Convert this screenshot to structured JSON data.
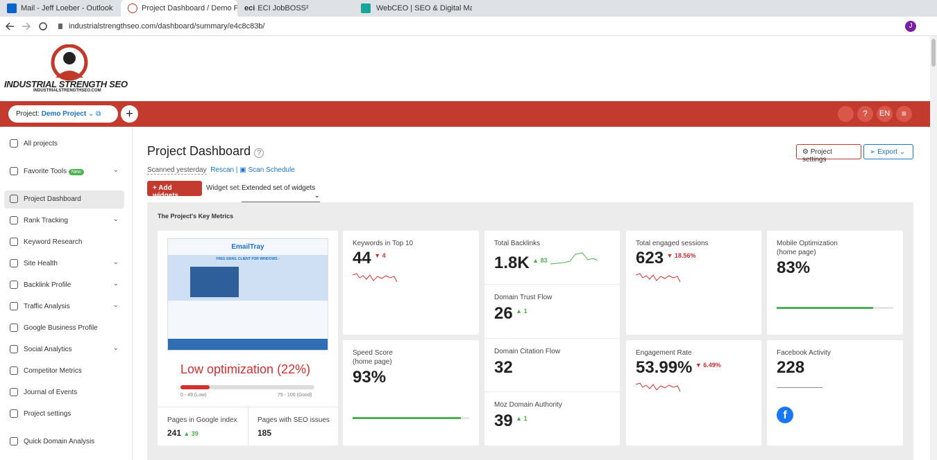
{
  "browser": {
    "tabs": [
      {
        "title": "Mail - Jeff Loeber - Outlook"
      },
      {
        "title": "Project Dashboard / Demo Proje"
      },
      {
        "icon_text": "eci",
        "title": "ECI JobBOSS²"
      },
      {
        "title": "WebCEO | SEO & Digital Marketi"
      }
    ],
    "url": "industrialstrengthseo.com/dashboard/summary/e4c8c83b/",
    "profile": "J"
  },
  "logo": {
    "title": "INDUSTRIAL STRENGTH SEO",
    "subtitle": "INDUSTRIALSTRENGTHSEO.COM"
  },
  "topbar": {
    "project_label": "Project:",
    "project_name": "Demo Project",
    "language": "EN"
  },
  "sidebar": {
    "items": [
      {
        "label": "All projects"
      },
      {
        "label": "Favorite Tools",
        "badge": "New"
      },
      {
        "label": "Project Dashboard"
      },
      {
        "label": "Rank Tracking"
      },
      {
        "label": "Keyword Research"
      },
      {
        "label": "Site Health"
      },
      {
        "label": "Backlink Profile"
      },
      {
        "label": "Traffic Analysis"
      },
      {
        "label": "Google Business Profile"
      },
      {
        "label": "Social Analytics"
      },
      {
        "label": "Competitor Metrics"
      },
      {
        "label": "Journal of Events"
      },
      {
        "label": "Project settings"
      },
      {
        "label": "Quick Domain Analysis"
      }
    ]
  },
  "header": {
    "title": "Project Dashboard",
    "scanned": "Scanned yesterday",
    "rescan": "Rescan",
    "separator": "|",
    "scan_schedule": "Scan Schedule",
    "project_settings": "Project settings",
    "export": "Export",
    "add_widgets": "Add widgets",
    "widget_set_label": "Widget set:",
    "widget_set": "Extended set of widgets"
  },
  "panel": {
    "title": "The Project's Key Metrics",
    "site": {
      "preview_brand": "EmailTray",
      "preview_headline": "FREE EMAIL CLIENT FOR WINDOWS -",
      "optimization": "Low optimization (22%)",
      "score": 22,
      "low_range": "0 - 49 (Low)",
      "good_range": "75 - 100 (Good)",
      "pages_index_label": "Pages in Google index",
      "pages_index": 241,
      "pages_index_change": 39,
      "seo_issues_label": "Pages with SEO issues",
      "seo_issues": 185
    },
    "metrics": {
      "keywords": {
        "label": "Keywords in Top 10",
        "value": 44,
        "change": 4
      },
      "backlinks": {
        "label": "Total Backlinks",
        "value": "1.8K",
        "change": 83
      },
      "trust_flow": {
        "label": "Domain Trust Flow",
        "value": 26,
        "change": 1
      },
      "citation_flow": {
        "label": "Domain Citation Flow",
        "value": 32
      },
      "moz": {
        "label": "Moz Domain Authority",
        "value": 39,
        "change": 1
      },
      "sessions": {
        "label": "Total engaged sessions",
        "value": 623,
        "change": "18.56%"
      },
      "engagement": {
        "label": "Engagement Rate",
        "value": "53.99%",
        "change": "6.49%"
      },
      "mobile": {
        "label": "Mobile Optimization",
        "sublabel": "(home page)",
        "value": "83%"
      },
      "speed": {
        "label": "Speed Score",
        "sublabel": "(home page)",
        "value": "93%"
      },
      "facebook": {
        "label": "Facebook Activity",
        "value": 228
      }
    }
  }
}
